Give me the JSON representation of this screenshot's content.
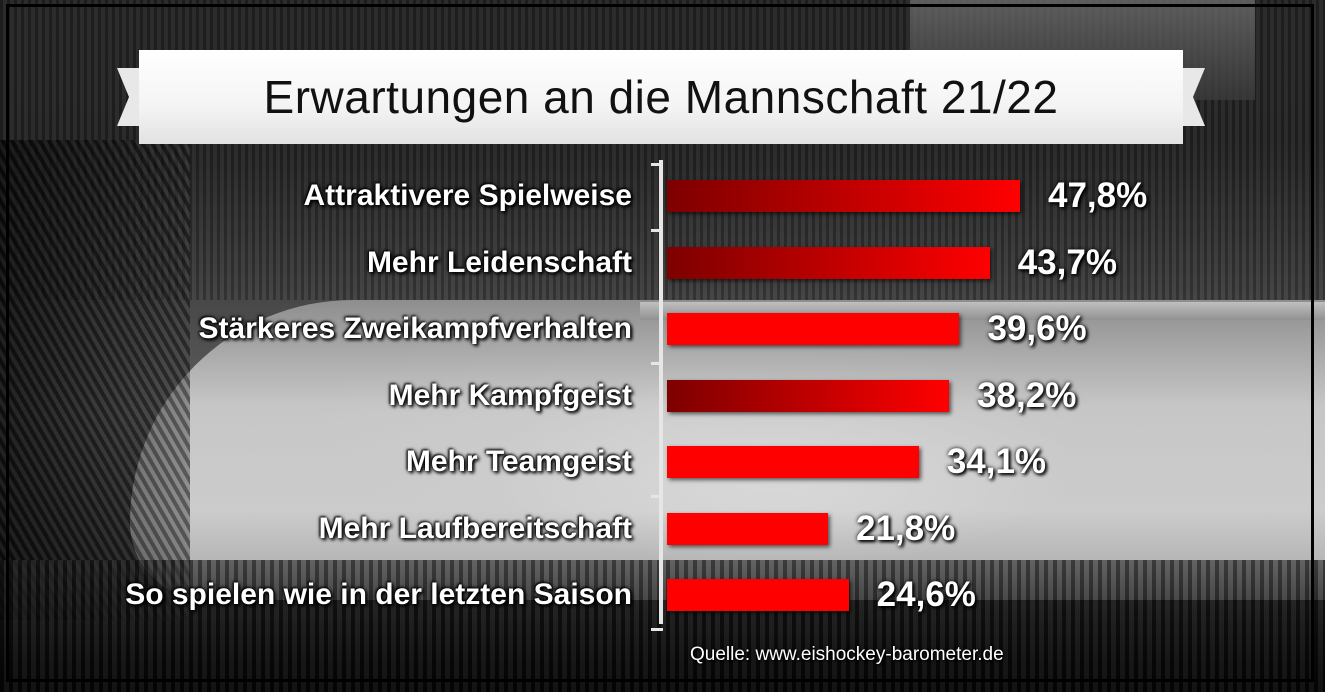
{
  "title": "Erwartungen an die Mannschaft 21/22",
  "source": "Quelle: www.eishockey-barometer.de",
  "colors": {
    "bar": "#ff0000",
    "bar_dark": "#7d0000",
    "text": "#ffffff",
    "title": "#111111"
  },
  "chart_data": {
    "type": "bar",
    "orientation": "horizontal",
    "title": "Erwartungen an die Mannschaft 21/22",
    "categories": [
      "Attraktivere Spielweise",
      "Mehr Leidenschaft",
      "Stärkeres Zweikampfverhalten",
      "Mehr Kampfgeist",
      "Mehr Teamgeist",
      "Mehr Laufbereitschaft",
      "So spielen wie in der letzten Saison"
    ],
    "values": [
      47.8,
      43.7,
      39.6,
      38.2,
      34.1,
      21.8,
      24.6
    ],
    "value_labels": [
      "47,8%",
      "43,7%",
      "39,6%",
      "38,2%",
      "34,1%",
      "21,8%",
      "24,6%"
    ],
    "gradient_bars": [
      true,
      true,
      false,
      true,
      false,
      false,
      false
    ],
    "xlabel": "",
    "ylabel": "",
    "xlim": [
      0,
      47.8
    ],
    "grid": false,
    "legend": "none"
  }
}
